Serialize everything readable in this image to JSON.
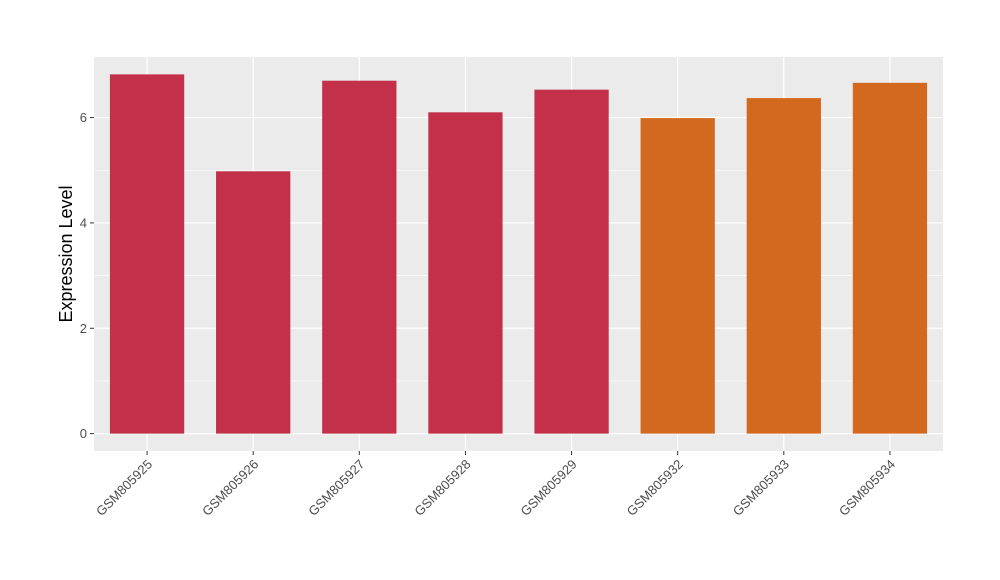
{
  "chart_data": {
    "type": "bar",
    "categories": [
      "GSM805925",
      "GSM805926",
      "GSM805927",
      "GSM805928",
      "GSM805929",
      "GSM805932",
      "GSM805933",
      "GSM805934"
    ],
    "values": [
      6.82,
      4.98,
      6.7,
      6.1,
      6.53,
      5.99,
      6.37,
      6.66
    ],
    "groups": [
      0,
      0,
      0,
      0,
      0,
      1,
      1,
      1
    ],
    "group_colors": [
      "#C23049",
      "#D2691E"
    ],
    "xlabel": "",
    "ylabel": "Expression Level",
    "ylim": [
      -0.33,
      7.15
    ],
    "yticks": [
      0,
      2,
      4,
      6
    ],
    "ytick_labels": [
      "0",
      "2",
      "4",
      "6"
    ],
    "grid": true,
    "legend": "none",
    "panel_color": "#EBEBEB",
    "grid_color": "#FFFFFF"
  }
}
